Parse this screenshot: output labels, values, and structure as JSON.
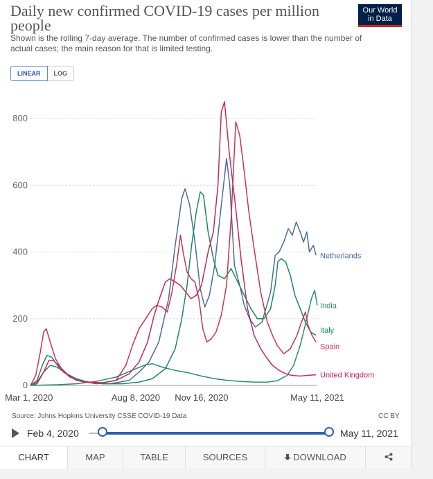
{
  "header": {
    "title": "Daily new confirmed COVID-19 cases per million people",
    "subtitle": "Shown is the rolling 7-day average. The number of confirmed cases is lower than the number of actual cases; the main reason for that is limited testing.",
    "logo_line1": "Our World",
    "logo_line2": "in Data"
  },
  "scale_toggle": {
    "linear_label": "LINEAR",
    "log_label": "LOG",
    "selected": "LINEAR"
  },
  "footer": {
    "source": "Source: Johns Hopkins University CSSE COVID-19 Data",
    "license": "CC BY"
  },
  "timeline": {
    "start_label": "Feb 4, 2020",
    "end_label": "May 11, 2021"
  },
  "tabs": [
    {
      "label": "CHART"
    },
    {
      "label": "MAP"
    },
    {
      "label": "TABLE"
    },
    {
      "label": "SOURCES"
    },
    {
      "label": "DOWNLOAD"
    },
    {
      "label": ""
    }
  ],
  "chart_data": {
    "type": "line",
    "title": "Daily new confirmed COVID-19 cases per million people",
    "ylim": [
      0,
      900
    ],
    "yticks": [
      0,
      200,
      400,
      600,
      800
    ],
    "xticks": [
      {
        "label": "Mar 1, 2020",
        "day": 0
      },
      {
        "label": "Aug 8, 2020",
        "day": 160
      },
      {
        "label": "Nov 16, 2020",
        "day": 260
      },
      {
        "label": "May 11, 2021",
        "day": 436
      }
    ],
    "xlim_days": [
      0,
      436
    ],
    "grid": true,
    "series": [
      {
        "name": "Netherlands",
        "color": "#4c6a9c",
        "points": [
          [
            0,
            0
          ],
          [
            10,
            5
          ],
          [
            20,
            40
          ],
          [
            30,
            60
          ],
          [
            40,
            55
          ],
          [
            55,
            35
          ],
          [
            70,
            20
          ],
          [
            90,
            8
          ],
          [
            120,
            5
          ],
          [
            150,
            15
          ],
          [
            165,
            40
          ],
          [
            180,
            70
          ],
          [
            195,
            130
          ],
          [
            210,
            260
          ],
          [
            220,
            420
          ],
          [
            230,
            560
          ],
          [
            235,
            590
          ],
          [
            242,
            540
          ],
          [
            250,
            430
          ],
          [
            258,
            290
          ],
          [
            265,
            235
          ],
          [
            272,
            270
          ],
          [
            280,
            360
          ],
          [
            290,
            540
          ],
          [
            298,
            680
          ],
          [
            303,
            600
          ],
          [
            310,
            360
          ],
          [
            318,
            300
          ],
          [
            325,
            240
          ],
          [
            333,
            200
          ],
          [
            342,
            175
          ],
          [
            352,
            190
          ],
          [
            365,
            280
          ],
          [
            372,
            390
          ],
          [
            378,
            400
          ],
          [
            385,
            430
          ],
          [
            392,
            470
          ],
          [
            398,
            450
          ],
          [
            404,
            490
          ],
          [
            410,
            460
          ],
          [
            415,
            430
          ],
          [
            420,
            460
          ],
          [
            424,
            400
          ],
          [
            430,
            420
          ],
          [
            434,
            390
          ]
        ]
      },
      {
        "name": "India",
        "color": "#2a8c6b",
        "points": [
          [
            0,
            0
          ],
          [
            40,
            2
          ],
          [
            70,
            5
          ],
          [
            100,
            12
          ],
          [
            130,
            25
          ],
          [
            160,
            50
          ],
          [
            175,
            62
          ],
          [
            185,
            65
          ],
          [
            200,
            55
          ],
          [
            220,
            45
          ],
          [
            240,
            38
          ],
          [
            260,
            28
          ],
          [
            280,
            20
          ],
          [
            300,
            15
          ],
          [
            320,
            12
          ],
          [
            340,
            10
          ],
          [
            360,
            10
          ],
          [
            375,
            14
          ],
          [
            390,
            30
          ],
          [
            400,
            60
          ],
          [
            410,
            120
          ],
          [
            420,
            200
          ],
          [
            427,
            260
          ],
          [
            432,
            285
          ],
          [
            436,
            240
          ]
        ]
      },
      {
        "name": "Italy",
        "color": "#178a5a",
        "points": [
          [
            0,
            0
          ],
          [
            10,
            15
          ],
          [
            18,
            60
          ],
          [
            25,
            90
          ],
          [
            32,
            85
          ],
          [
            45,
            50
          ],
          [
            60,
            25
          ],
          [
            80,
            10
          ],
          [
            110,
            5
          ],
          [
            140,
            5
          ],
          [
            165,
            10
          ],
          [
            185,
            20
          ],
          [
            205,
            50
          ],
          [
            220,
            110
          ],
          [
            230,
            200
          ],
          [
            238,
            300
          ],
          [
            245,
            420
          ],
          [
            252,
            520
          ],
          [
            258,
            580
          ],
          [
            263,
            570
          ],
          [
            270,
            460
          ],
          [
            278,
            380
          ],
          [
            285,
            330
          ],
          [
            295,
            320
          ],
          [
            305,
            350
          ],
          [
            315,
            310
          ],
          [
            325,
            270
          ],
          [
            335,
            230
          ],
          [
            345,
            200
          ],
          [
            355,
            200
          ],
          [
            365,
            230
          ],
          [
            372,
            300
          ],
          [
            376,
            370
          ],
          [
            381,
            380
          ],
          [
            388,
            370
          ],
          [
            395,
            330
          ],
          [
            402,
            270
          ],
          [
            410,
            230
          ],
          [
            418,
            190
          ],
          [
            426,
            160
          ],
          [
            434,
            150
          ]
        ]
      },
      {
        "name": "Spain",
        "color": "#c9334f",
        "points": [
          [
            0,
            0
          ],
          [
            8,
            30
          ],
          [
            15,
            100
          ],
          [
            20,
            160
          ],
          [
            24,
            170
          ],
          [
            30,
            130
          ],
          [
            38,
            80
          ],
          [
            50,
            40
          ],
          [
            70,
            15
          ],
          [
            100,
            5
          ],
          [
            130,
            15
          ],
          [
            145,
            60
          ],
          [
            155,
            120
          ],
          [
            165,
            170
          ],
          [
            175,
            200
          ],
          [
            185,
            230
          ],
          [
            192,
            240
          ],
          [
            200,
            235
          ],
          [
            208,
            220
          ],
          [
            215,
            280
          ],
          [
            222,
            360
          ],
          [
            228,
            450
          ],
          [
            232,
            400
          ],
          [
            238,
            340
          ],
          [
            244,
            320
          ],
          [
            250,
            310
          ],
          [
            256,
            260
          ],
          [
            262,
            170
          ],
          [
            268,
            130
          ],
          [
            275,
            140
          ],
          [
            282,
            160
          ],
          [
            290,
            210
          ],
          [
            298,
            300
          ],
          [
            305,
            500
          ],
          [
            312,
            790
          ],
          [
            318,
            750
          ],
          [
            325,
            640
          ],
          [
            332,
            520
          ],
          [
            340,
            410
          ],
          [
            350,
            280
          ],
          [
            360,
            190
          ],
          [
            368,
            150
          ],
          [
            375,
            120
          ],
          [
            385,
            95
          ],
          [
            395,
            110
          ],
          [
            405,
            150
          ],
          [
            412,
            190
          ],
          [
            418,
            220
          ],
          [
            422,
            180
          ],
          [
            428,
            150
          ],
          [
            434,
            130
          ]
        ]
      },
      {
        "name": "United Kingdom",
        "color": "#c4275a",
        "points": [
          [
            0,
            0
          ],
          [
            10,
            10
          ],
          [
            20,
            40
          ],
          [
            28,
            75
          ],
          [
            35,
            75
          ],
          [
            45,
            55
          ],
          [
            58,
            30
          ],
          [
            70,
            15
          ],
          [
            90,
            10
          ],
          [
            110,
            8
          ],
          [
            130,
            15
          ],
          [
            150,
            35
          ],
          [
            165,
            70
          ],
          [
            178,
            130
          ],
          [
            188,
            210
          ],
          [
            196,
            260
          ],
          [
            205,
            310
          ],
          [
            212,
            320
          ],
          [
            220,
            310
          ],
          [
            228,
            300
          ],
          [
            236,
            280
          ],
          [
            244,
            260
          ],
          [
            252,
            270
          ],
          [
            260,
            300
          ],
          [
            270,
            400
          ],
          [
            278,
            460
          ],
          [
            285,
            600
          ],
          [
            290,
            820
          ],
          [
            295,
            850
          ],
          [
            302,
            700
          ],
          [
            312,
            530
          ],
          [
            320,
            380
          ],
          [
            330,
            230
          ],
          [
            340,
            150
          ],
          [
            350,
            110
          ],
          [
            360,
            80
          ],
          [
            368,
            60
          ],
          [
            378,
            45
          ],
          [
            388,
            35
          ],
          [
            398,
            30
          ],
          [
            410,
            28
          ],
          [
            420,
            30
          ],
          [
            434,
            32
          ]
        ]
      }
    ]
  }
}
